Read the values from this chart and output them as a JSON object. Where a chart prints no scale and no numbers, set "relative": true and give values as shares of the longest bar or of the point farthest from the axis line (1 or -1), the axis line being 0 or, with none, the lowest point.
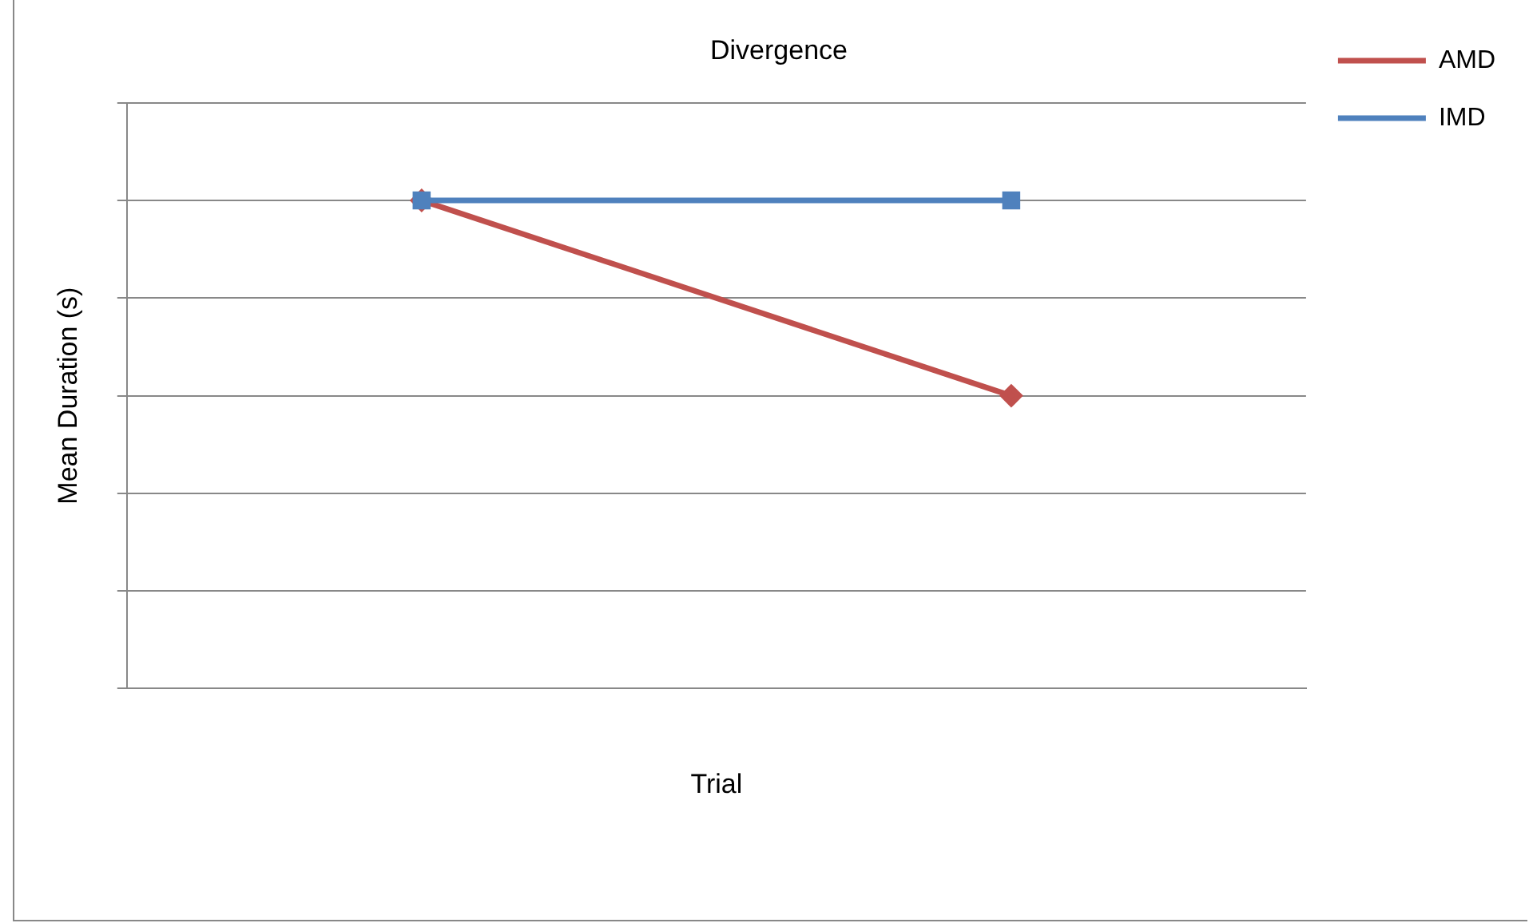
{
  "chart_data": {
    "type": "line",
    "title": "Divergence",
    "xlabel": "Trial",
    "ylabel": "Mean Duration (s)",
    "relative": true,
    "grid": "y",
    "legend": "right",
    "categories": [
      null,
      null
    ],
    "series": [
      {
        "name": "AMD",
        "color": "#c0504d",
        "marker": "diamond",
        "values": [
          1,
          0.6
        ]
      },
      {
        "name": "IMD",
        "color": "#4f81bd",
        "marker": "square",
        "values": [
          1,
          1
        ]
      }
    ]
  }
}
